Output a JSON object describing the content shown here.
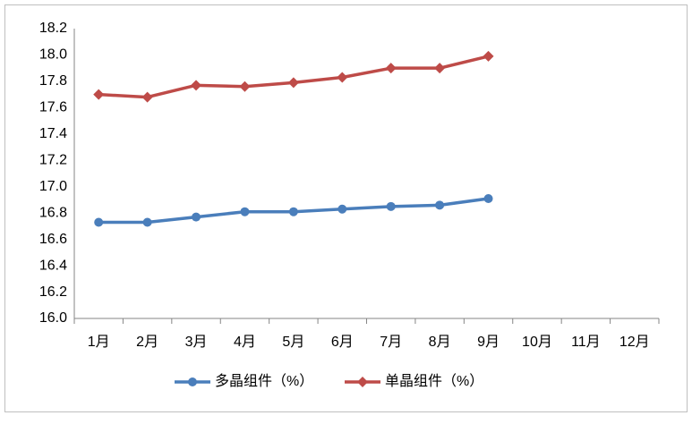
{
  "chart_data": {
    "type": "line",
    "categories": [
      "1月",
      "2月",
      "3月",
      "4月",
      "5月",
      "6月",
      "7月",
      "8月",
      "9月",
      "10月",
      "11月",
      "12月"
    ],
    "series": [
      {
        "name": "多晶组件（%）",
        "color": "#4a7ebb",
        "marker": "circle",
        "values": [
          16.73,
          16.73,
          16.77,
          16.81,
          16.81,
          16.83,
          16.85,
          16.86,
          16.91,
          null,
          null,
          null
        ]
      },
      {
        "name": "单晶组件（%）",
        "color": "#be4b48",
        "marker": "diamond",
        "values": [
          17.7,
          17.68,
          17.77,
          17.76,
          17.79,
          17.83,
          17.9,
          17.9,
          17.99,
          null,
          null,
          null
        ]
      }
    ],
    "ylim": [
      16.0,
      18.2
    ],
    "yticks": [
      {
        "value": 16.0,
        "label": "16.0"
      },
      16.2,
      16.4,
      16.6,
      16.8,
      {
        "value": 17.0,
        "label": "17.0"
      },
      17.2,
      17.4,
      17.6,
      17.8,
      {
        "value": 18.0,
        "label": "18.0"
      },
      18.2
    ],
    "grid": false,
    "legend": "bottom"
  }
}
